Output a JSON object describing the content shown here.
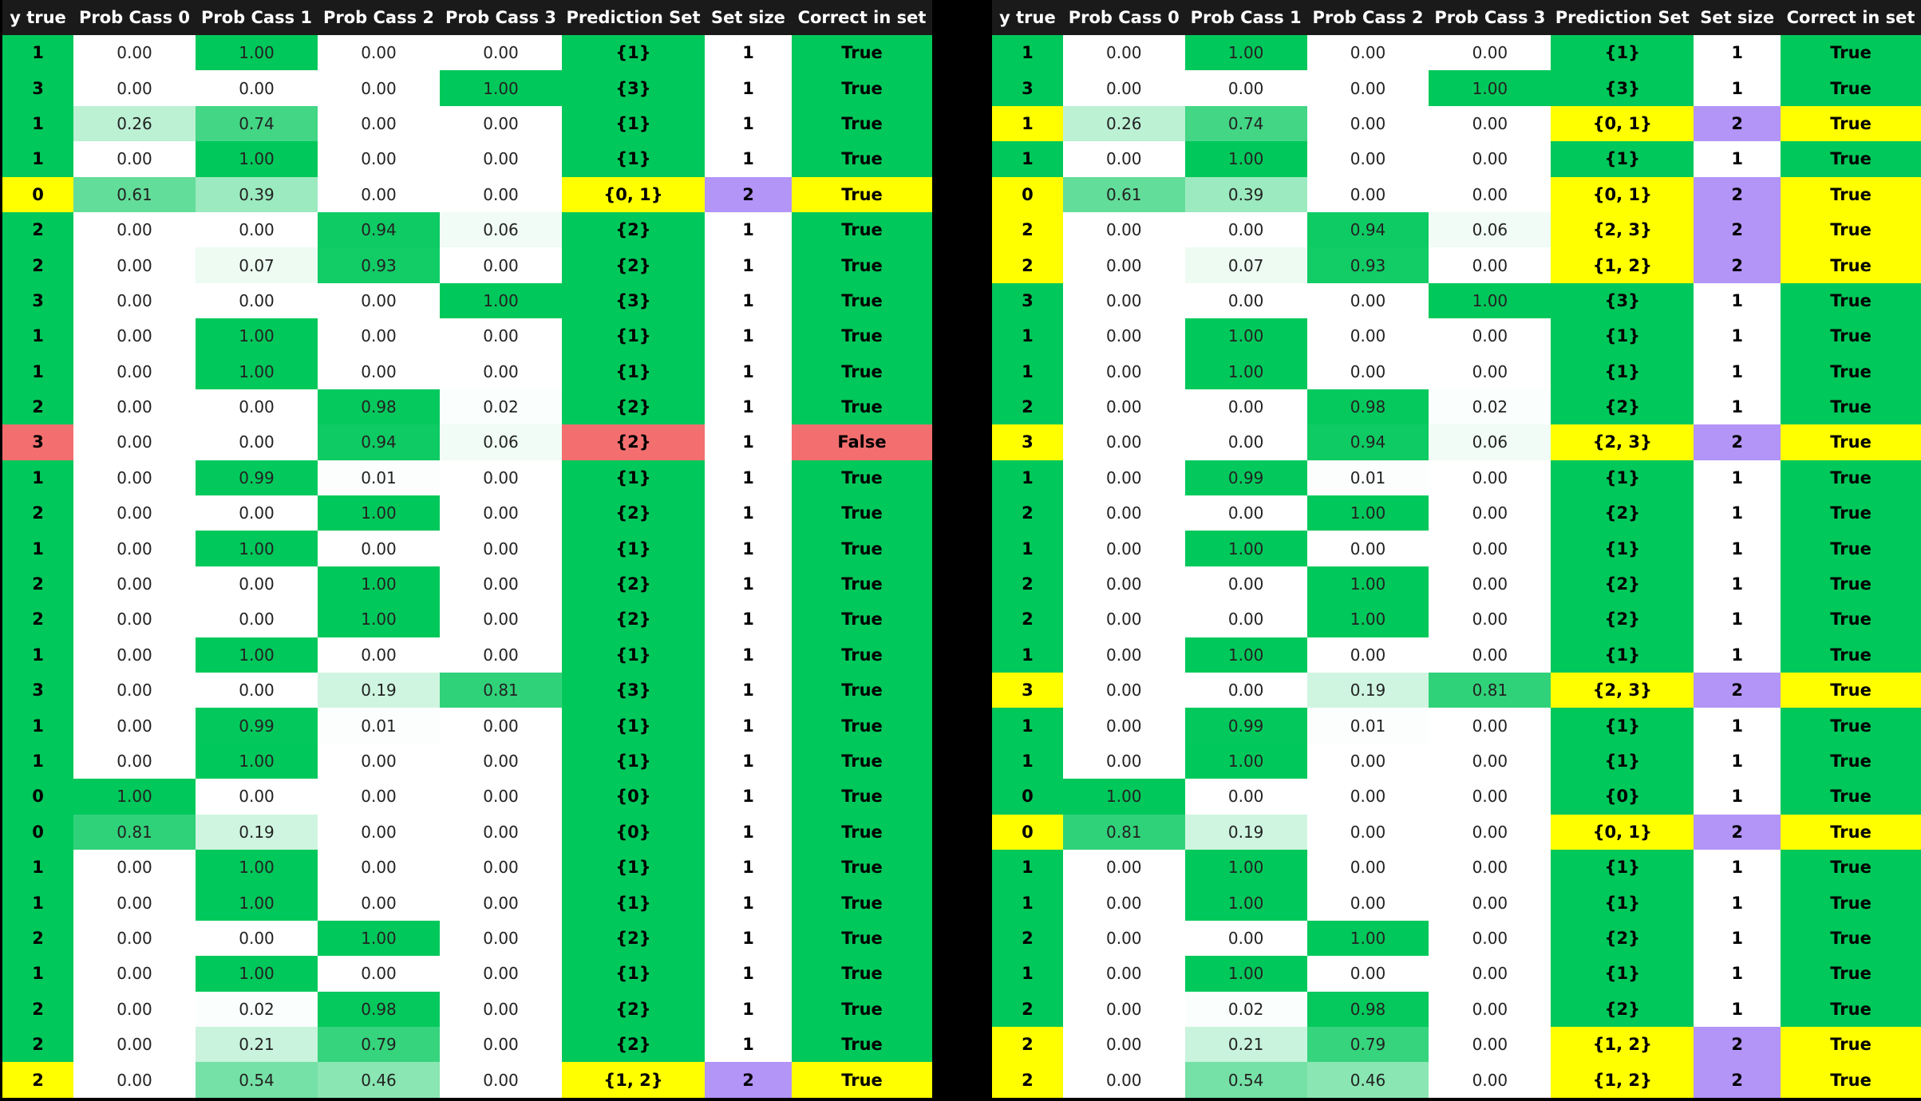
{
  "headers": [
    "y true",
    "Prob Cass 0",
    "Prob Cass 1",
    "Prob Cass 2",
    "Prob Cass 3",
    "Prediction Set",
    "Set size",
    "Correct in set"
  ],
  "colors": {
    "header_bg": "#1a1a1a",
    "green": "#00c85a",
    "yellow": "#ffff00",
    "red": "#f36f6f",
    "purple": "#b394f7",
    "white": "#ffffff",
    "background": "#000000"
  },
  "left_table": {
    "rows": [
      {
        "y": "1",
        "p": [
          "0.00",
          "1.00",
          "0.00",
          "0.00"
        ],
        "set": "{1}",
        "size": "1",
        "correct": "True"
      },
      {
        "y": "3",
        "p": [
          "0.00",
          "0.00",
          "0.00",
          "1.00"
        ],
        "set": "{3}",
        "size": "1",
        "correct": "True"
      },
      {
        "y": "1",
        "p": [
          "0.26",
          "0.74",
          "0.00",
          "0.00"
        ],
        "set": "{1}",
        "size": "1",
        "correct": "True"
      },
      {
        "y": "1",
        "p": [
          "0.00",
          "1.00",
          "0.00",
          "0.00"
        ],
        "set": "{1}",
        "size": "1",
        "correct": "True"
      },
      {
        "y": "0",
        "p": [
          "0.61",
          "0.39",
          "0.00",
          "0.00"
        ],
        "set": "{0, 1}",
        "size": "2",
        "correct": "True"
      },
      {
        "y": "2",
        "p": [
          "0.00",
          "0.00",
          "0.94",
          "0.06"
        ],
        "set": "{2}",
        "size": "1",
        "correct": "True"
      },
      {
        "y": "2",
        "p": [
          "0.00",
          "0.07",
          "0.93",
          "0.00"
        ],
        "set": "{2}",
        "size": "1",
        "correct": "True"
      },
      {
        "y": "3",
        "p": [
          "0.00",
          "0.00",
          "0.00",
          "1.00"
        ],
        "set": "{3}",
        "size": "1",
        "correct": "True"
      },
      {
        "y": "1",
        "p": [
          "0.00",
          "1.00",
          "0.00",
          "0.00"
        ],
        "set": "{1}",
        "size": "1",
        "correct": "True"
      },
      {
        "y": "1",
        "p": [
          "0.00",
          "1.00",
          "0.00",
          "0.00"
        ],
        "set": "{1}",
        "size": "1",
        "correct": "True"
      },
      {
        "y": "2",
        "p": [
          "0.00",
          "0.00",
          "0.98",
          "0.02"
        ],
        "set": "{2}",
        "size": "1",
        "correct": "True"
      },
      {
        "y": "3",
        "p": [
          "0.00",
          "0.00",
          "0.94",
          "0.06"
        ],
        "set": "{2}",
        "size": "1",
        "correct": "False"
      },
      {
        "y": "1",
        "p": [
          "0.00",
          "0.99",
          "0.01",
          "0.00"
        ],
        "set": "{1}",
        "size": "1",
        "correct": "True"
      },
      {
        "y": "2",
        "p": [
          "0.00",
          "0.00",
          "1.00",
          "0.00"
        ],
        "set": "{2}",
        "size": "1",
        "correct": "True"
      },
      {
        "y": "1",
        "p": [
          "0.00",
          "1.00",
          "0.00",
          "0.00"
        ],
        "set": "{1}",
        "size": "1",
        "correct": "True"
      },
      {
        "y": "2",
        "p": [
          "0.00",
          "0.00",
          "1.00",
          "0.00"
        ],
        "set": "{2}",
        "size": "1",
        "correct": "True"
      },
      {
        "y": "2",
        "p": [
          "0.00",
          "0.00",
          "1.00",
          "0.00"
        ],
        "set": "{2}",
        "size": "1",
        "correct": "True"
      },
      {
        "y": "1",
        "p": [
          "0.00",
          "1.00",
          "0.00",
          "0.00"
        ],
        "set": "{1}",
        "size": "1",
        "correct": "True"
      },
      {
        "y": "3",
        "p": [
          "0.00",
          "0.00",
          "0.19",
          "0.81"
        ],
        "set": "{3}",
        "size": "1",
        "correct": "True"
      },
      {
        "y": "1",
        "p": [
          "0.00",
          "0.99",
          "0.01",
          "0.00"
        ],
        "set": "{1}",
        "size": "1",
        "correct": "True"
      },
      {
        "y": "1",
        "p": [
          "0.00",
          "1.00",
          "0.00",
          "0.00"
        ],
        "set": "{1}",
        "size": "1",
        "correct": "True"
      },
      {
        "y": "0",
        "p": [
          "1.00",
          "0.00",
          "0.00",
          "0.00"
        ],
        "set": "{0}",
        "size": "1",
        "correct": "True"
      },
      {
        "y": "0",
        "p": [
          "0.81",
          "0.19",
          "0.00",
          "0.00"
        ],
        "set": "{0}",
        "size": "1",
        "correct": "True"
      },
      {
        "y": "1",
        "p": [
          "0.00",
          "1.00",
          "0.00",
          "0.00"
        ],
        "set": "{1}",
        "size": "1",
        "correct": "True"
      },
      {
        "y": "1",
        "p": [
          "0.00",
          "1.00",
          "0.00",
          "0.00"
        ],
        "set": "{1}",
        "size": "1",
        "correct": "True"
      },
      {
        "y": "2",
        "p": [
          "0.00",
          "0.00",
          "1.00",
          "0.00"
        ],
        "set": "{2}",
        "size": "1",
        "correct": "True"
      },
      {
        "y": "1",
        "p": [
          "0.00",
          "1.00",
          "0.00",
          "0.00"
        ],
        "set": "{1}",
        "size": "1",
        "correct": "True"
      },
      {
        "y": "2",
        "p": [
          "0.00",
          "0.02",
          "0.98",
          "0.00"
        ],
        "set": "{2}",
        "size": "1",
        "correct": "True"
      },
      {
        "y": "2",
        "p": [
          "0.00",
          "0.21",
          "0.79",
          "0.00"
        ],
        "set": "{2}",
        "size": "1",
        "correct": "True"
      },
      {
        "y": "2",
        "p": [
          "0.00",
          "0.54",
          "0.46",
          "0.00"
        ],
        "set": "{1, 2}",
        "size": "2",
        "correct": "True"
      }
    ]
  },
  "right_table": {
    "rows": [
      {
        "y": "1",
        "p": [
          "0.00",
          "1.00",
          "0.00",
          "0.00"
        ],
        "set": "{1}",
        "size": "1",
        "correct": "True"
      },
      {
        "y": "3",
        "p": [
          "0.00",
          "0.00",
          "0.00",
          "1.00"
        ],
        "set": "{3}",
        "size": "1",
        "correct": "True"
      },
      {
        "y": "1",
        "p": [
          "0.26",
          "0.74",
          "0.00",
          "0.00"
        ],
        "set": "{0, 1}",
        "size": "2",
        "correct": "True"
      },
      {
        "y": "1",
        "p": [
          "0.00",
          "1.00",
          "0.00",
          "0.00"
        ],
        "set": "{1}",
        "size": "1",
        "correct": "True"
      },
      {
        "y": "0",
        "p": [
          "0.61",
          "0.39",
          "0.00",
          "0.00"
        ],
        "set": "{0, 1}",
        "size": "2",
        "correct": "True"
      },
      {
        "y": "2",
        "p": [
          "0.00",
          "0.00",
          "0.94",
          "0.06"
        ],
        "set": "{2, 3}",
        "size": "2",
        "correct": "True"
      },
      {
        "y": "2",
        "p": [
          "0.00",
          "0.07",
          "0.93",
          "0.00"
        ],
        "set": "{1, 2}",
        "size": "2",
        "correct": "True"
      },
      {
        "y": "3",
        "p": [
          "0.00",
          "0.00",
          "0.00",
          "1.00"
        ],
        "set": "{3}",
        "size": "1",
        "correct": "True"
      },
      {
        "y": "1",
        "p": [
          "0.00",
          "1.00",
          "0.00",
          "0.00"
        ],
        "set": "{1}",
        "size": "1",
        "correct": "True"
      },
      {
        "y": "1",
        "p": [
          "0.00",
          "1.00",
          "0.00",
          "0.00"
        ],
        "set": "{1}",
        "size": "1",
        "correct": "True"
      },
      {
        "y": "2",
        "p": [
          "0.00",
          "0.00",
          "0.98",
          "0.02"
        ],
        "set": "{2}",
        "size": "1",
        "correct": "True"
      },
      {
        "y": "3",
        "p": [
          "0.00",
          "0.00",
          "0.94",
          "0.06"
        ],
        "set": "{2, 3}",
        "size": "2",
        "correct": "True"
      },
      {
        "y": "1",
        "p": [
          "0.00",
          "0.99",
          "0.01",
          "0.00"
        ],
        "set": "{1}",
        "size": "1",
        "correct": "True"
      },
      {
        "y": "2",
        "p": [
          "0.00",
          "0.00",
          "1.00",
          "0.00"
        ],
        "set": "{2}",
        "size": "1",
        "correct": "True"
      },
      {
        "y": "1",
        "p": [
          "0.00",
          "1.00",
          "0.00",
          "0.00"
        ],
        "set": "{1}",
        "size": "1",
        "correct": "True"
      },
      {
        "y": "2",
        "p": [
          "0.00",
          "0.00",
          "1.00",
          "0.00"
        ],
        "set": "{2}",
        "size": "1",
        "correct": "True"
      },
      {
        "y": "2",
        "p": [
          "0.00",
          "0.00",
          "1.00",
          "0.00"
        ],
        "set": "{2}",
        "size": "1",
        "correct": "True"
      },
      {
        "y": "1",
        "p": [
          "0.00",
          "1.00",
          "0.00",
          "0.00"
        ],
        "set": "{1}",
        "size": "1",
        "correct": "True"
      },
      {
        "y": "3",
        "p": [
          "0.00",
          "0.00",
          "0.19",
          "0.81"
        ],
        "set": "{2, 3}",
        "size": "2",
        "correct": "True"
      },
      {
        "y": "1",
        "p": [
          "0.00",
          "0.99",
          "0.01",
          "0.00"
        ],
        "set": "{1}",
        "size": "1",
        "correct": "True"
      },
      {
        "y": "1",
        "p": [
          "0.00",
          "1.00",
          "0.00",
          "0.00"
        ],
        "set": "{1}",
        "size": "1",
        "correct": "True"
      },
      {
        "y": "0",
        "p": [
          "1.00",
          "0.00",
          "0.00",
          "0.00"
        ],
        "set": "{0}",
        "size": "1",
        "correct": "True"
      },
      {
        "y": "0",
        "p": [
          "0.81",
          "0.19",
          "0.00",
          "0.00"
        ],
        "set": "{0, 1}",
        "size": "2",
        "correct": "True"
      },
      {
        "y": "1",
        "p": [
          "0.00",
          "1.00",
          "0.00",
          "0.00"
        ],
        "set": "{1}",
        "size": "1",
        "correct": "True"
      },
      {
        "y": "1",
        "p": [
          "0.00",
          "1.00",
          "0.00",
          "0.00"
        ],
        "set": "{1}",
        "size": "1",
        "correct": "True"
      },
      {
        "y": "2",
        "p": [
          "0.00",
          "0.00",
          "1.00",
          "0.00"
        ],
        "set": "{2}",
        "size": "1",
        "correct": "True"
      },
      {
        "y": "1",
        "p": [
          "0.00",
          "1.00",
          "0.00",
          "0.00"
        ],
        "set": "{1}",
        "size": "1",
        "correct": "True"
      },
      {
        "y": "2",
        "p": [
          "0.00",
          "0.02",
          "0.98",
          "0.00"
        ],
        "set": "{2}",
        "size": "1",
        "correct": "True"
      },
      {
        "y": "2",
        "p": [
          "0.00",
          "0.21",
          "0.79",
          "0.00"
        ],
        "set": "{1, 2}",
        "size": "2",
        "correct": "True"
      },
      {
        "y": "2",
        "p": [
          "0.00",
          "0.54",
          "0.46",
          "0.00"
        ],
        "set": "{1, 2}",
        "size": "2",
        "correct": "True"
      }
    ]
  }
}
